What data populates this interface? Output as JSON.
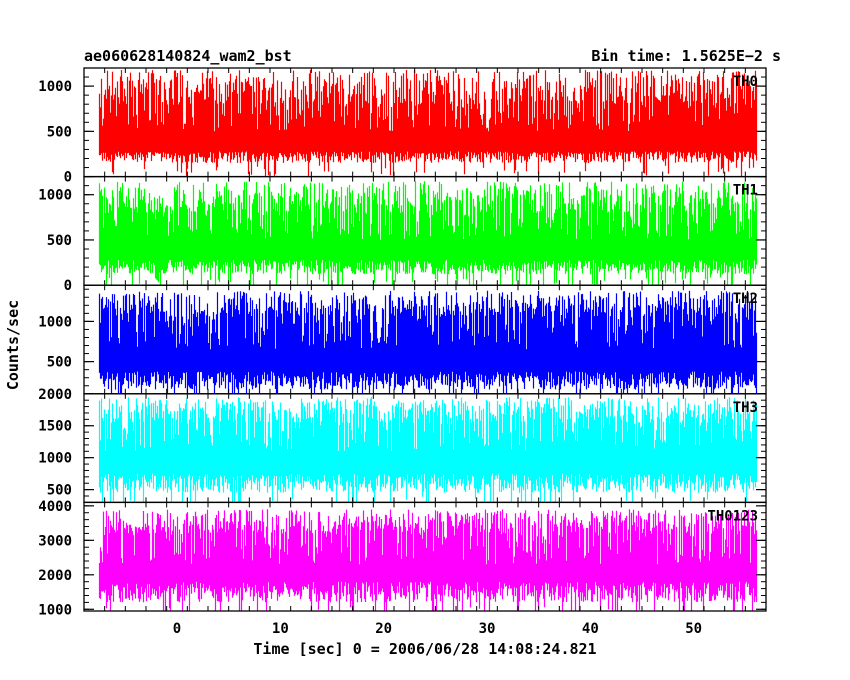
{
  "title_left": "ae060628140824_wam2_bst",
  "title_right": "Bin time: 1.5625E−2 s",
  "ylabel": "Counts/sec",
  "xlabel": "Time [sec] 0 = 2006/06/28 14:08:24.821",
  "chart_data": {
    "type": "line",
    "title": "ae060628140824_wam2_bst",
    "subtitle": "Bin time: 1.5625E−2 s",
    "xlabel": "Time [sec] 0 = 2006/06/28 14:08:24.821",
    "ylabel": "Counts/sec",
    "xlim": [
      -9,
      57
    ],
    "x_ticks": [
      0,
      10,
      20,
      30,
      40,
      50
    ],
    "data_x_range": [
      -7.5,
      56
    ],
    "bin_time": 0.015625,
    "grid": false,
    "panels": [
      {
        "name": "TH0",
        "color": "#ff0000",
        "ylim": [
          0,
          1200
        ],
        "y_ticks": [
          0,
          500,
          1000
        ],
        "baseline": [
          150,
          280
        ],
        "peak": [
          800,
          1180
        ],
        "mean": 500
      },
      {
        "name": "TH1",
        "color": "#00ff00",
        "ylim": [
          0,
          1200
        ],
        "y_ticks": [
          0,
          500,
          1000
        ],
        "baseline": [
          120,
          280
        ],
        "peak": [
          800,
          1150
        ],
        "mean": 500
      },
      {
        "name": "TH2",
        "color": "#0000ff",
        "ylim": [
          100,
          1450
        ],
        "y_ticks": [
          500,
          1000
        ],
        "baseline": [
          150,
          380
        ],
        "peak": [
          1050,
          1380
        ],
        "mean": 650
      },
      {
        "name": "TH3",
        "color": "#00ffff",
        "ylim": [
          300,
          2000
        ],
        "y_ticks": [
          500,
          1000,
          1500,
          2000
        ],
        "baseline": [
          450,
          750
        ],
        "peak": [
          1550,
          1950
        ],
        "mean": 1100
      },
      {
        "name": "TH0123",
        "color": "#ff00ff",
        "ylim": [
          950,
          4100
        ],
        "y_ticks": [
          1000,
          2000,
          3000,
          4000
        ],
        "baseline": [
          1200,
          1800
        ],
        "peak": [
          3200,
          3900
        ],
        "mean": 2300
      }
    ]
  }
}
